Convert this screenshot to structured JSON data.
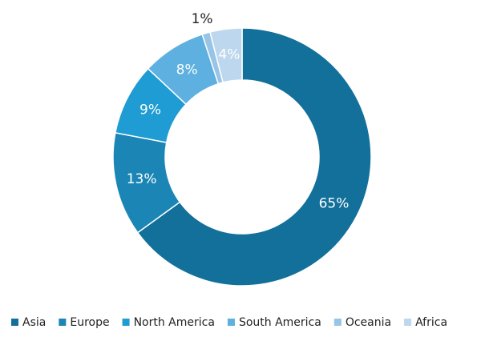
{
  "chart_data": {
    "type": "donut",
    "categories": [
      "Asia",
      "Europe",
      "North America",
      "South America",
      "Oceania",
      "Africa"
    ],
    "values": [
      65,
      13,
      9,
      8,
      1,
      4
    ],
    "value_labels": [
      "65%",
      "13%",
      "9%",
      "8%",
      "1%",
      "4%"
    ],
    "colors": [
      "#12709b",
      "#1b86b5",
      "#1e9cd3",
      "#5db0e0",
      "#98c4e6",
      "#bdd7ee"
    ],
    "legend": "bottom"
  }
}
